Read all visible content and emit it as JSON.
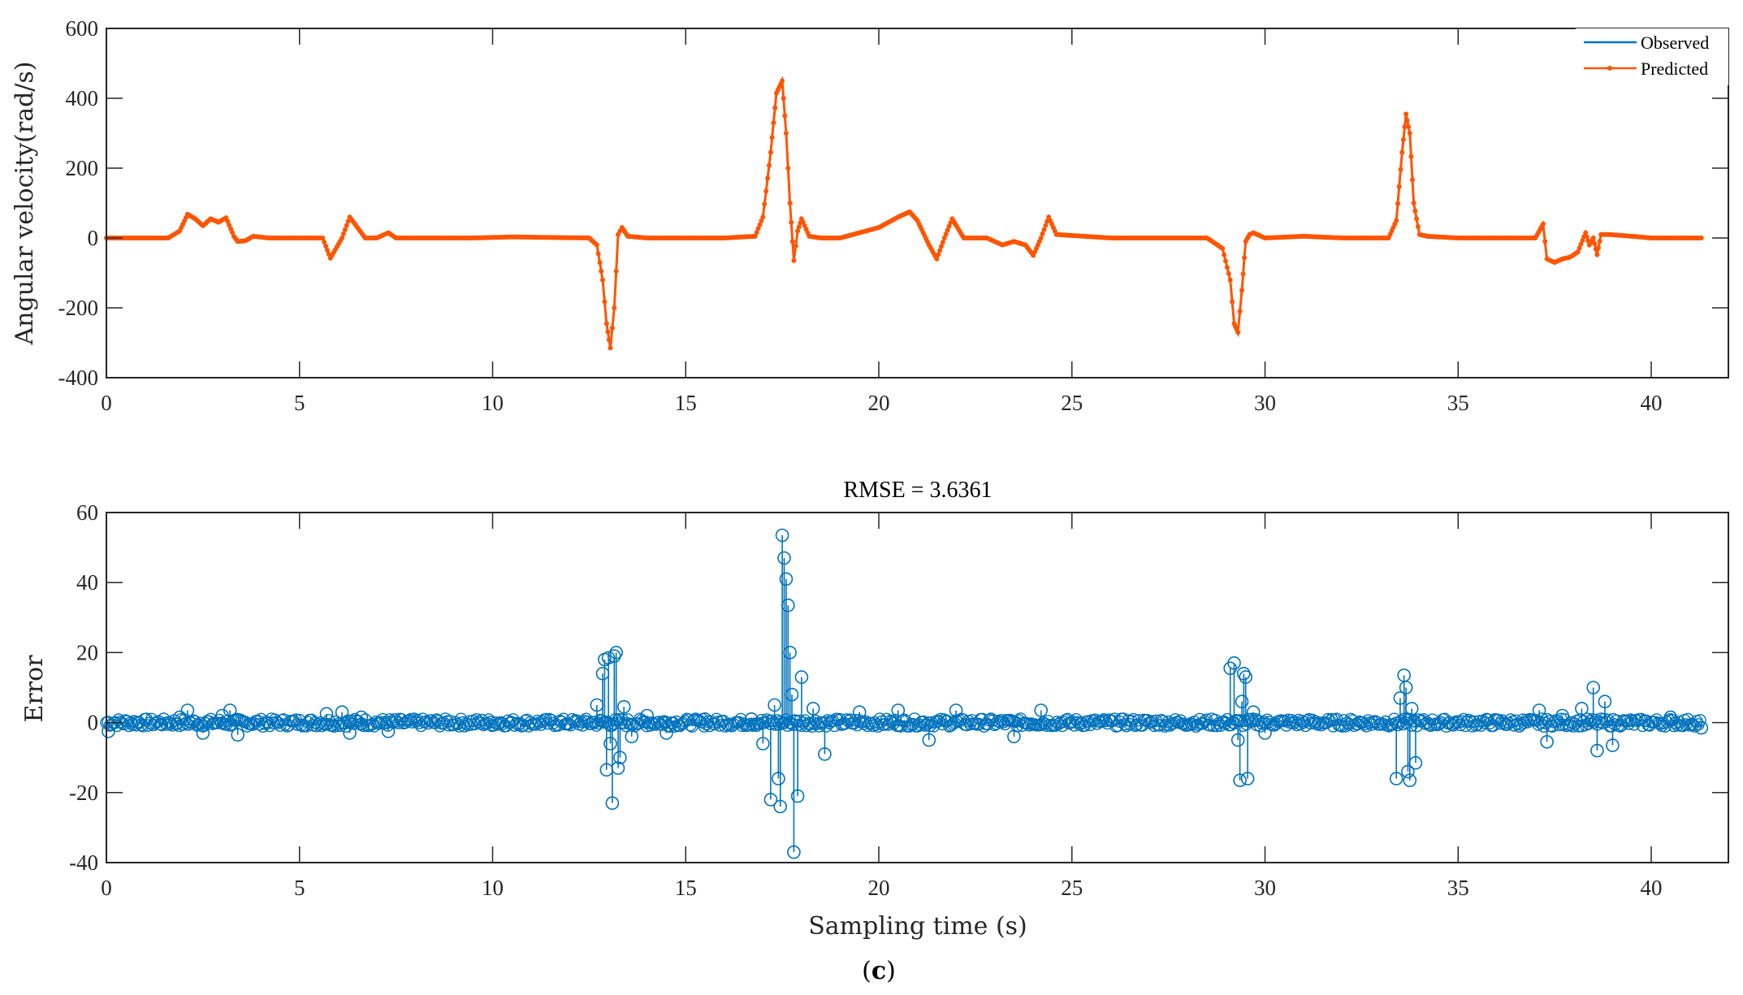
{
  "figure": {
    "caption_label": "c",
    "caption_open": "(",
    "caption_close": ")"
  },
  "chart_data": [
    {
      "type": "line",
      "title": "",
      "xlabel": "",
      "ylabel": "Angular velocity(rad/s)",
      "xlim": [
        0,
        41.5
      ],
      "ylim": [
        -400,
        600
      ],
      "xticks": [
        0,
        5,
        10,
        15,
        20,
        25,
        30,
        35,
        40
      ],
      "yticks": [
        -400,
        -200,
        0,
        200,
        400,
        600
      ],
      "grid": false,
      "legend": {
        "position": "top-right",
        "entries": [
          "Observed",
          "Predicted"
        ]
      },
      "colors": {
        "Observed": "#0072BD",
        "Predicted": "#FF5500"
      },
      "series": [
        {
          "name": "Observed",
          "x": [
            0,
            1.6,
            1.9,
            2.1,
            2.3,
            2.5,
            2.7,
            2.9,
            3.1,
            3.3,
            3.4,
            3.6,
            3.8,
            4.2,
            5.6,
            5.8,
            6.1,
            6.3,
            6.5,
            6.7,
            7.0,
            7.3,
            7.5,
            9.5,
            10.5,
            12.5,
            12.7,
            12.85,
            12.95,
            13.05,
            13.15,
            13.25,
            13.35,
            13.5,
            14,
            15,
            16,
            16.8,
            17.0,
            17.2,
            17.35,
            17.5,
            17.6,
            17.7,
            17.8,
            17.9,
            18.0,
            18.2,
            18.5,
            19,
            20,
            20.5,
            20.8,
            21.0,
            21.3,
            21.5,
            21.7,
            21.9,
            22.2,
            22.8,
            23.2,
            23.5,
            23.8,
            24.0,
            24.2,
            24.4,
            24.6,
            26,
            28.5,
            28.9,
            29.1,
            29.2,
            29.3,
            29.4,
            29.5,
            29.6,
            29.7,
            30.0,
            31,
            32,
            33.2,
            33.4,
            33.55,
            33.65,
            33.75,
            33.85,
            34.0,
            34.2,
            35,
            37.0,
            37.2,
            37.3,
            37.5,
            37.7,
            37.9,
            38.1,
            38.3,
            38.4,
            38.5,
            38.6,
            38.7,
            38.9,
            39.5,
            40,
            40.5,
            41.3
          ],
          "y": [
            0,
            0,
            20,
            70,
            55,
            35,
            55,
            45,
            60,
            5,
            -10,
            -8,
            5,
            0,
            0,
            -60,
            0,
            60,
            30,
            0,
            0,
            15,
            0,
            0,
            3,
            0,
            -20,
            -120,
            -250,
            -320,
            -200,
            10,
            30,
            5,
            0,
            0,
            0,
            5,
            60,
            250,
            420,
            455,
            300,
            100,
            -60,
            20,
            55,
            5,
            0,
            0,
            30,
            60,
            75,
            50,
            -20,
            -60,
            0,
            55,
            0,
            0,
            -20,
            -10,
            -20,
            -50,
            0,
            60,
            10,
            0,
            0,
            -30,
            -120,
            -250,
            -275,
            -150,
            -10,
            10,
            15,
            0,
            5,
            0,
            0,
            50,
            250,
            360,
            300,
            100,
            10,
            5,
            0,
            0,
            40,
            -60,
            -70,
            -60,
            -55,
            -40,
            15,
            -20,
            0,
            -50,
            10,
            10,
            5,
            0,
            0,
            0
          ]
        },
        {
          "name": "Predicted",
          "x": [
            0,
            1.6,
            1.9,
            2.1,
            2.3,
            2.5,
            2.7,
            2.9,
            3.1,
            3.3,
            3.4,
            3.6,
            3.8,
            4.2,
            5.6,
            5.8,
            6.1,
            6.3,
            6.5,
            6.7,
            7.0,
            7.3,
            7.5,
            9.5,
            10.5,
            12.5,
            12.7,
            12.85,
            12.95,
            13.05,
            13.15,
            13.25,
            13.35,
            13.5,
            14,
            15,
            16,
            16.8,
            17.0,
            17.2,
            17.35,
            17.5,
            17.6,
            17.7,
            17.8,
            17.9,
            18.0,
            18.2,
            18.5,
            19,
            20,
            20.5,
            20.8,
            21.0,
            21.3,
            21.5,
            21.7,
            21.9,
            22.2,
            22.8,
            23.2,
            23.5,
            23.8,
            24.0,
            24.2,
            24.4,
            24.6,
            26,
            28.5,
            28.9,
            29.1,
            29.2,
            29.3,
            29.4,
            29.5,
            29.6,
            29.7,
            30.0,
            31,
            32,
            33.2,
            33.4,
            33.55,
            33.65,
            33.75,
            33.85,
            34.0,
            34.2,
            35,
            37.0,
            37.2,
            37.3,
            37.5,
            37.7,
            37.9,
            38.1,
            38.3,
            38.4,
            38.5,
            38.6,
            38.7,
            38.9,
            39.5,
            40,
            40.5,
            41.3
          ],
          "y": [
            0,
            0,
            20,
            68,
            55,
            35,
            55,
            45,
            58,
            5,
            -10,
            -8,
            5,
            0,
            0,
            -58,
            0,
            60,
            30,
            0,
            0,
            15,
            0,
            0,
            3,
            0,
            -20,
            -120,
            -245,
            -315,
            -200,
            10,
            30,
            5,
            0,
            0,
            0,
            5,
            60,
            245,
            415,
            450,
            300,
            100,
            -65,
            20,
            55,
            5,
            0,
            0,
            30,
            60,
            75,
            50,
            -20,
            -60,
            0,
            55,
            0,
            0,
            -20,
            -10,
            -20,
            -50,
            0,
            60,
            10,
            0,
            0,
            -30,
            -120,
            -245,
            -270,
            -150,
            -10,
            10,
            15,
            0,
            5,
            0,
            0,
            50,
            245,
            355,
            300,
            100,
            10,
            5,
            0,
            0,
            40,
            -60,
            -70,
            -60,
            -55,
            -40,
            15,
            -20,
            0,
            -48,
            10,
            10,
            5,
            0,
            0,
            0
          ]
        }
      ]
    },
    {
      "type": "scatter",
      "title": "RMSE = 3.6361",
      "xlabel": "Sampling time (s)",
      "ylabel": "Error",
      "xlim": [
        0,
        41.5
      ],
      "ylim": [
        -40,
        60
      ],
      "xticks": [
        0,
        5,
        10,
        15,
        20,
        25,
        30,
        35,
        40
      ],
      "yticks": [
        -40,
        -20,
        0,
        20,
        40,
        60
      ],
      "grid": false,
      "marker": "open-circle-stem",
      "color": "#0072BD",
      "series": [
        {
          "name": "Error",
          "x": [
            0.05,
            1.9,
            2.1,
            2.5,
            3.0,
            3.2,
            3.4,
            5.7,
            6.1,
            6.3,
            6.6,
            7.3,
            12.7,
            12.85,
            12.9,
            12.95,
            13.0,
            13.05,
            13.1,
            13.15,
            13.2,
            13.25,
            13.3,
            13.4,
            13.6,
            14.0,
            14.5,
            15.5,
            16.7,
            17.0,
            17.2,
            17.3,
            17.4,
            17.45,
            17.5,
            17.55,
            17.6,
            17.65,
            17.7,
            17.75,
            17.8,
            17.9,
            18.0,
            18.3,
            18.6,
            19.5,
            20.5,
            21.3,
            22.0,
            23.5,
            24.2,
            29.1,
            29.2,
            29.3,
            29.35,
            29.4,
            29.45,
            29.5,
            29.55,
            29.7,
            30.0,
            33.4,
            33.5,
            33.6,
            33.65,
            33.7,
            33.75,
            33.8,
            33.9,
            37.1,
            37.3,
            37.7,
            38.2,
            38.5,
            38.6,
            38.8,
            39.0,
            40.5,
            41.3
          ],
          "y": [
            -2.5,
            1.5,
            3.5,
            -3,
            2,
            3.5,
            -3.5,
            2.5,
            3,
            -3,
            1.5,
            -2.5,
            5,
            14,
            18,
            -13.5,
            18.5,
            -6,
            -23,
            19,
            20,
            -13,
            -10,
            4.5,
            -4,
            2,
            -3,
            1,
            1,
            -6,
            -22,
            5,
            -16,
            -24,
            53.5,
            47,
            41,
            33.5,
            20,
            8,
            -37,
            -21,
            13,
            4,
            -9,
            3,
            3.5,
            -5,
            3.5,
            -4,
            3.5,
            15.5,
            17,
            -5,
            -16.5,
            6,
            14,
            13,
            -16,
            3,
            -3,
            -16,
            7,
            13.5,
            10,
            -14,
            -16.5,
            4,
            -11.5,
            3.5,
            -5.5,
            2,
            4,
            10,
            -8,
            6,
            -6.5,
            1.5,
            -1.5
          ]
        }
      ]
    }
  ]
}
